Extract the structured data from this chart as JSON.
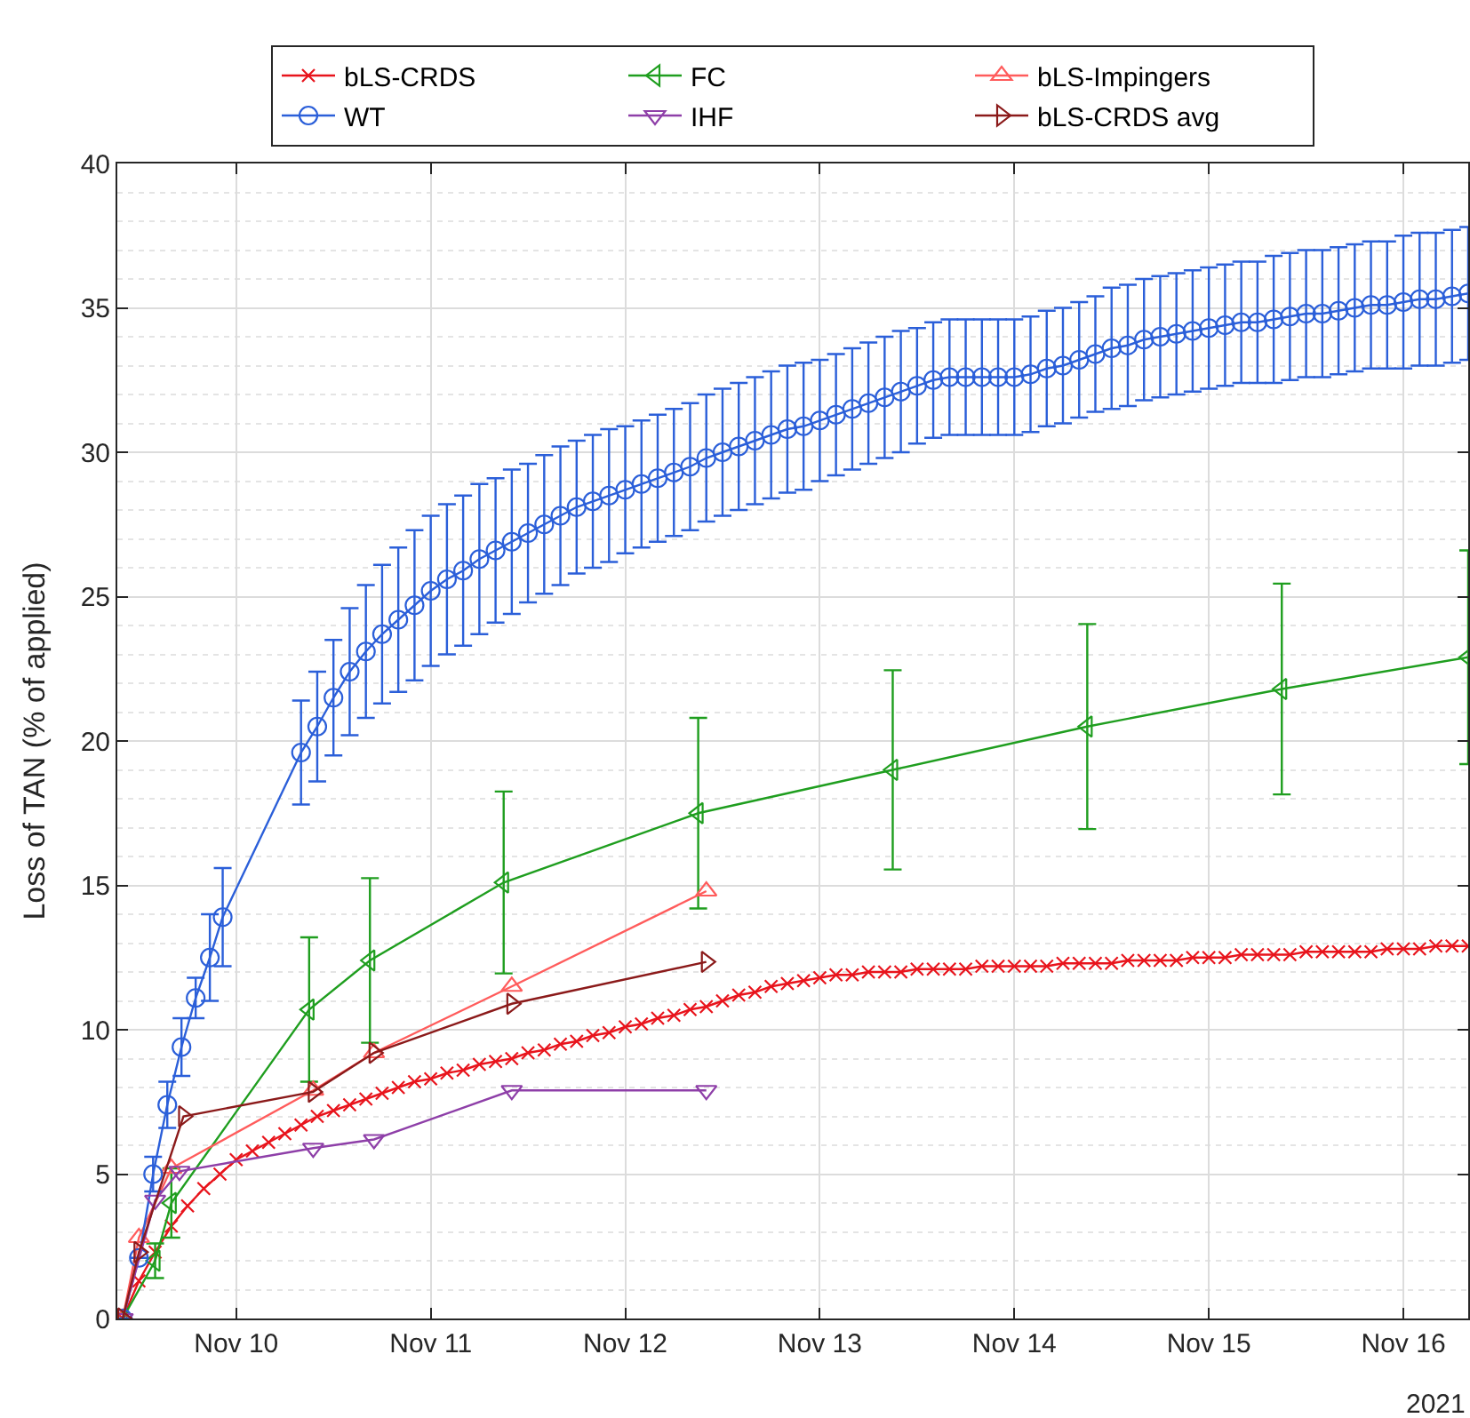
{
  "chart_data": {
    "type": "line",
    "ylabel": "Loss of TAN (% of applied)",
    "annotations": [
      "2021"
    ],
    "xlim": [
      "2021-11-09T09:20",
      "2021-11-16T08:00"
    ],
    "xticks": [
      {
        "value": "2021-11-10",
        "label": "Nov 10"
      },
      {
        "value": "2021-11-11",
        "label": "Nov 11"
      },
      {
        "value": "2021-11-12",
        "label": "Nov 12"
      },
      {
        "value": "2021-11-13",
        "label": "Nov 13"
      },
      {
        "value": "2021-11-14",
        "label": "Nov 14"
      },
      {
        "value": "2021-11-15",
        "label": "Nov 15"
      },
      {
        "value": "2021-11-16",
        "label": "Nov 16"
      }
    ],
    "ylim": [
      0,
      40
    ],
    "yticks": [
      0,
      5,
      10,
      15,
      20,
      25,
      30,
      35,
      40
    ],
    "grid": true,
    "legend": "top",
    "line_style": "solid",
    "series": [
      {
        "name": "bLS-CRDS",
        "color": "#e8141c",
        "marker": "cross",
        "x": [
          "2021-11-09T10:00",
          "2021-11-09T12:00",
          "2021-11-09T14:00",
          "2021-11-09T16:00",
          "2021-11-09T18:00",
          "2021-11-09T20:00",
          "2021-11-09T22:00",
          "2021-11-10T00:00",
          "2021-11-10T02:00",
          "2021-11-10T04:00",
          "2021-11-10T06:00",
          "2021-11-10T08:00",
          "2021-11-10T10:00",
          "2021-11-10T12:00",
          "2021-11-10T14:00",
          "2021-11-10T16:00",
          "2021-11-10T18:00",
          "2021-11-10T20:00",
          "2021-11-10T22:00",
          "2021-11-11T00:00",
          "2021-11-11T02:00",
          "2021-11-11T04:00",
          "2021-11-11T06:00",
          "2021-11-11T08:00",
          "2021-11-11T10:00",
          "2021-11-11T12:00",
          "2021-11-11T14:00",
          "2021-11-11T16:00",
          "2021-11-11T18:00",
          "2021-11-11T20:00",
          "2021-11-11T22:00",
          "2021-11-12T00:00",
          "2021-11-12T02:00",
          "2021-11-12T04:00",
          "2021-11-12T06:00",
          "2021-11-12T08:00",
          "2021-11-12T10:00",
          "2021-11-12T12:00",
          "2021-11-12T14:00",
          "2021-11-12T16:00",
          "2021-11-12T18:00",
          "2021-11-12T20:00",
          "2021-11-12T22:00",
          "2021-11-13T00:00",
          "2021-11-13T02:00",
          "2021-11-13T04:00",
          "2021-11-13T06:00",
          "2021-11-13T08:00",
          "2021-11-13T10:00",
          "2021-11-13T12:00",
          "2021-11-13T14:00",
          "2021-11-13T16:00",
          "2021-11-13T18:00",
          "2021-11-13T20:00",
          "2021-11-13T22:00",
          "2021-11-14T00:00",
          "2021-11-14T02:00",
          "2021-11-14T04:00",
          "2021-11-14T06:00",
          "2021-11-14T08:00",
          "2021-11-14T10:00",
          "2021-11-14T12:00",
          "2021-11-14T14:00",
          "2021-11-14T16:00",
          "2021-11-14T18:00",
          "2021-11-14T20:00",
          "2021-11-14T22:00",
          "2021-11-15T00:00",
          "2021-11-15T02:00",
          "2021-11-15T04:00",
          "2021-11-15T06:00",
          "2021-11-15T08:00",
          "2021-11-15T10:00",
          "2021-11-15T12:00",
          "2021-11-15T14:00",
          "2021-11-15T16:00",
          "2021-11-15T18:00",
          "2021-11-15T20:00",
          "2021-11-15T22:00",
          "2021-11-16T00:00",
          "2021-11-16T02:00",
          "2021-11-16T04:00",
          "2021-11-16T06:00",
          "2021-11-16T08:00"
        ],
        "values": [
          0,
          1.3,
          2.3,
          3.2,
          3.9,
          4.5,
          5.0,
          5.5,
          5.8,
          6.1,
          6.4,
          6.7,
          7.0,
          7.2,
          7.4,
          7.6,
          7.8,
          8.0,
          8.2,
          8.3,
          8.5,
          8.6,
          8.8,
          8.9,
          9.0,
          9.2,
          9.3,
          9.5,
          9.6,
          9.8,
          9.9,
          10.1,
          10.2,
          10.4,
          10.5,
          10.7,
          10.8,
          11.0,
          11.2,
          11.3,
          11.5,
          11.6,
          11.7,
          11.8,
          11.9,
          11.9,
          12.0,
          12.0,
          12.0,
          12.1,
          12.1,
          12.1,
          12.1,
          12.2,
          12.2,
          12.2,
          12.2,
          12.2,
          12.3,
          12.3,
          12.3,
          12.3,
          12.4,
          12.4,
          12.4,
          12.4,
          12.5,
          12.5,
          12.5,
          12.6,
          12.6,
          12.6,
          12.6,
          12.7,
          12.7,
          12.7,
          12.7,
          12.7,
          12.8,
          12.8,
          12.8,
          12.9,
          12.9,
          12.9
        ]
      },
      {
        "name": "WT",
        "color": "#2b5fd9",
        "marker": "circle",
        "x": [
          "2021-11-09T10:00",
          "2021-11-09T12:00",
          "2021-11-09T13:45",
          "2021-11-09T15:30",
          "2021-11-09T17:15",
          "2021-11-09T19:00",
          "2021-11-09T20:45",
          "2021-11-09T22:20",
          "2021-11-10T08:00",
          "2021-11-10T10:00",
          "2021-11-10T12:00",
          "2021-11-10T14:00",
          "2021-11-10T16:00",
          "2021-11-10T18:00",
          "2021-11-10T20:00",
          "2021-11-10T22:00",
          "2021-11-11T00:00",
          "2021-11-11T02:00",
          "2021-11-11T04:00",
          "2021-11-11T06:00",
          "2021-11-11T08:00",
          "2021-11-11T10:00",
          "2021-11-11T12:00",
          "2021-11-11T14:00",
          "2021-11-11T16:00",
          "2021-11-11T18:00",
          "2021-11-11T20:00",
          "2021-11-11T22:00",
          "2021-11-12T00:00",
          "2021-11-12T02:00",
          "2021-11-12T04:00",
          "2021-11-12T06:00",
          "2021-11-12T08:00",
          "2021-11-12T10:00",
          "2021-11-12T12:00",
          "2021-11-12T14:00",
          "2021-11-12T16:00",
          "2021-11-12T18:00",
          "2021-11-12T20:00",
          "2021-11-12T22:00",
          "2021-11-13T00:00",
          "2021-11-13T02:00",
          "2021-11-13T04:00",
          "2021-11-13T06:00",
          "2021-11-13T08:00",
          "2021-11-13T10:00",
          "2021-11-13T12:00",
          "2021-11-13T14:00",
          "2021-11-13T16:00",
          "2021-11-13T18:00",
          "2021-11-13T20:00",
          "2021-11-13T22:00",
          "2021-11-14T00:00",
          "2021-11-14T02:00",
          "2021-11-14T04:00",
          "2021-11-14T06:00",
          "2021-11-14T08:00",
          "2021-11-14T10:00",
          "2021-11-14T12:00",
          "2021-11-14T14:00",
          "2021-11-14T16:00",
          "2021-11-14T18:00",
          "2021-11-14T20:00",
          "2021-11-14T22:00",
          "2021-11-15T00:00",
          "2021-11-15T02:00",
          "2021-11-15T04:00",
          "2021-11-15T06:00",
          "2021-11-15T08:00",
          "2021-11-15T10:00",
          "2021-11-15T12:00",
          "2021-11-15T14:00",
          "2021-11-15T16:00",
          "2021-11-15T18:00",
          "2021-11-15T20:00",
          "2021-11-15T22:00",
          "2021-11-16T00:00",
          "2021-11-16T02:00",
          "2021-11-16T04:00",
          "2021-11-16T06:00",
          "2021-11-16T08:00"
        ],
        "values": [
          0,
          2.1,
          5.0,
          7.4,
          9.4,
          11.1,
          12.5,
          13.9,
          19.6,
          20.5,
          21.5,
          22.4,
          23.1,
          23.7,
          24.2,
          24.7,
          25.2,
          25.6,
          25.9,
          26.3,
          26.6,
          26.9,
          27.2,
          27.5,
          27.8,
          28.1,
          28.3,
          28.5,
          28.7,
          28.9,
          29.1,
          29.3,
          29.5,
          29.8,
          30.0,
          30.2,
          30.4,
          30.6,
          30.8,
          30.9,
          31.1,
          31.3,
          31.5,
          31.7,
          31.9,
          32.1,
          32.3,
          32.5,
          32.6,
          32.6,
          32.6,
          32.6,
          32.6,
          32.7,
          32.9,
          33.0,
          33.2,
          33.4,
          33.6,
          33.7,
          33.9,
          34.0,
          34.1,
          34.2,
          34.3,
          34.4,
          34.5,
          34.5,
          34.6,
          34.7,
          34.8,
          34.8,
          34.9,
          35.0,
          35.1,
          35.1,
          35.2,
          35.3,
          35.3,
          35.4,
          35.5
        ],
        "errors": [
          null,
          null,
          0.6,
          0.8,
          1.0,
          0.7,
          1.5,
          1.7,
          1.8,
          1.9,
          2.0,
          2.2,
          2.3,
          2.4,
          2.5,
          2.6,
          2.6,
          2.6,
          2.6,
          2.6,
          2.5,
          2.5,
          2.4,
          2.4,
          2.4,
          2.3,
          2.3,
          2.3,
          2.2,
          2.2,
          2.2,
          2.2,
          2.2,
          2.2,
          2.2,
          2.2,
          2.2,
          2.2,
          2.2,
          2.2,
          2.1,
          2.1,
          2.1,
          2.1,
          2.1,
          2.1,
          2.0,
          2.0,
          2.0,
          2.0,
          2.0,
          2.0,
          2.0,
          2.0,
          2.0,
          2.0,
          2.0,
          2.0,
          2.1,
          2.1,
          2.1,
          2.1,
          2.1,
          2.1,
          2.1,
          2.1,
          2.1,
          2.1,
          2.2,
          2.2,
          2.2,
          2.2,
          2.2,
          2.2,
          2.2,
          2.2,
          2.3,
          2.3,
          2.3,
          2.3,
          2.3
        ]
      },
      {
        "name": "FC",
        "color": "#1f9e1f",
        "marker": "triangle-left",
        "x": [
          "2021-11-09T10:00",
          "2021-11-09T14:00",
          "2021-11-09T16:00",
          "2021-11-10T09:00",
          "2021-11-10T16:30",
          "2021-11-11T09:00",
          "2021-11-12T09:00",
          "2021-11-13T09:00",
          "2021-11-14T09:00",
          "2021-11-15T09:00",
          "2021-11-16T08:00"
        ],
        "values": [
          0,
          2.0,
          4.0,
          10.7,
          12.4,
          15.1,
          17.5,
          19.0,
          20.5,
          21.8,
          22.9
        ],
        "errors": [
          null,
          0.6,
          1.2,
          2.5,
          2.85,
          3.15,
          3.3,
          3.45,
          3.55,
          3.65,
          3.7
        ]
      },
      {
        "name": "IHF",
        "color": "#8e3fa8",
        "marker": "triangle-down",
        "x": [
          "2021-11-09T10:00",
          "2021-11-09T14:00",
          "2021-11-09T17:00",
          "2021-11-10T09:30",
          "2021-11-10T17:00",
          "2021-11-11T10:00",
          "2021-11-12T10:00"
        ],
        "values": [
          0,
          4.1,
          5.1,
          5.9,
          6.2,
          7.9,
          7.9
        ]
      },
      {
        "name": "bLS-Impingers",
        "color": "#ff5c5c",
        "marker": "triangle-up",
        "x": [
          "2021-11-09T10:00",
          "2021-11-09T12:00",
          "2021-11-09T16:00",
          "2021-11-10T09:30",
          "2021-11-10T17:00",
          "2021-11-11T10:00",
          "2021-11-12T10:00"
        ],
        "values": [
          0,
          2.8,
          5.2,
          7.9,
          9.2,
          11.5,
          14.8
        ]
      },
      {
        "name": "bLS-CRDS avg",
        "color": "#8b1a1a",
        "marker": "triangle-right",
        "x": [
          "2021-11-09T10:00",
          "2021-11-09T12:00",
          "2021-11-09T17:30",
          "2021-11-10T09:30",
          "2021-11-10T17:00",
          "2021-11-11T10:00",
          "2021-11-12T10:00"
        ],
        "values": [
          0,
          2.3,
          7.0,
          7.85,
          9.2,
          10.9,
          12.35
        ]
      }
    ]
  }
}
